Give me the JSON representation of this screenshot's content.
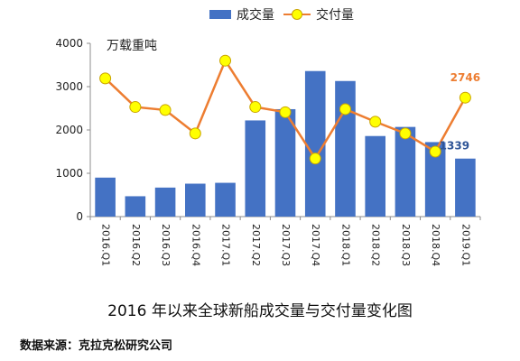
{
  "chart_data": {
    "type": "bar+line",
    "title": "2016 年以来全球新船成交量与交付量变化图",
    "unit": "万载重吨",
    "categories": [
      "2016.Q1",
      "2016.Q2",
      "2016.Q3",
      "2016.Q4",
      "2017.Q1",
      "2017.Q2",
      "2017.Q3",
      "2017.Q4",
      "2018.Q1",
      "2018.Q2",
      "2018.Q3",
      "2018.Q4",
      "2019.Q1"
    ],
    "series": [
      {
        "name": "成交量",
        "type": "bar",
        "color": "#4472C4",
        "values": [
          900,
          470,
          670,
          760,
          780,
          2220,
          2480,
          3360,
          3130,
          1860,
          2070,
          1720,
          1339
        ]
      },
      {
        "name": "交付量",
        "type": "line",
        "color": "#ED7D31",
        "marker_color": "#FFFF00",
        "values": [
          3190,
          2530,
          2460,
          1920,
          3600,
          2530,
          2410,
          1340,
          2480,
          2190,
          1920,
          1500,
          2746
        ]
      }
    ],
    "data_labels": [
      {
        "series": "交付量",
        "category": "2019.Q1",
        "text": "2746",
        "color": "#ED7D31"
      },
      {
        "series": "成交量",
        "category": "2019.Q1",
        "text": "1339",
        "color": "#2F5597"
      }
    ],
    "yticks": [
      "0",
      "1000",
      "2000",
      "3000",
      "4000"
    ],
    "ylim": [
      0,
      4000
    ],
    "grid": false,
    "legend_position": "top"
  },
  "source": "数据来源：克拉克松研究公司"
}
